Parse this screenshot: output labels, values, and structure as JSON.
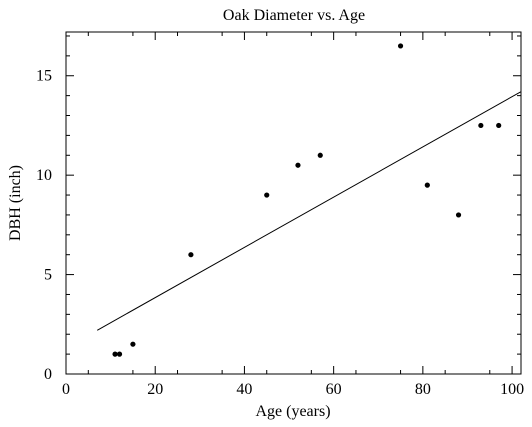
{
  "chart_data": {
    "type": "scatter",
    "title": "Oak Diameter vs. Age",
    "xlabel": "Age (years)",
    "ylabel": "DBH (inch)",
    "xlim": [
      0,
      102
    ],
    "ylim": [
      0,
      17.2
    ],
    "xticks": [
      0,
      20,
      40,
      60,
      80,
      100
    ],
    "yticks": [
      0,
      5,
      10,
      15
    ],
    "grid": false,
    "legend": "none",
    "marker_color": "#000000",
    "series": [
      {
        "points": [
          {
            "x": 11,
            "y": 1.0
          },
          {
            "x": 12,
            "y": 1.0
          },
          {
            "x": 15,
            "y": 1.5
          },
          {
            "x": 28,
            "y": 6.0
          },
          {
            "x": 45,
            "y": 9.0
          },
          {
            "x": 52,
            "y": 10.5
          },
          {
            "x": 57,
            "y": 11.0
          },
          {
            "x": 75,
            "y": 16.5
          },
          {
            "x": 81,
            "y": 9.5
          },
          {
            "x": 88,
            "y": 8.0
          },
          {
            "x": 93,
            "y": 12.5
          },
          {
            "x": 97,
            "y": 12.5
          }
        ]
      }
    ],
    "trendline": {
      "type": "linear",
      "x_range": [
        7,
        102
      ],
      "y_start": 2.2,
      "y_end": 14.2
    }
  }
}
